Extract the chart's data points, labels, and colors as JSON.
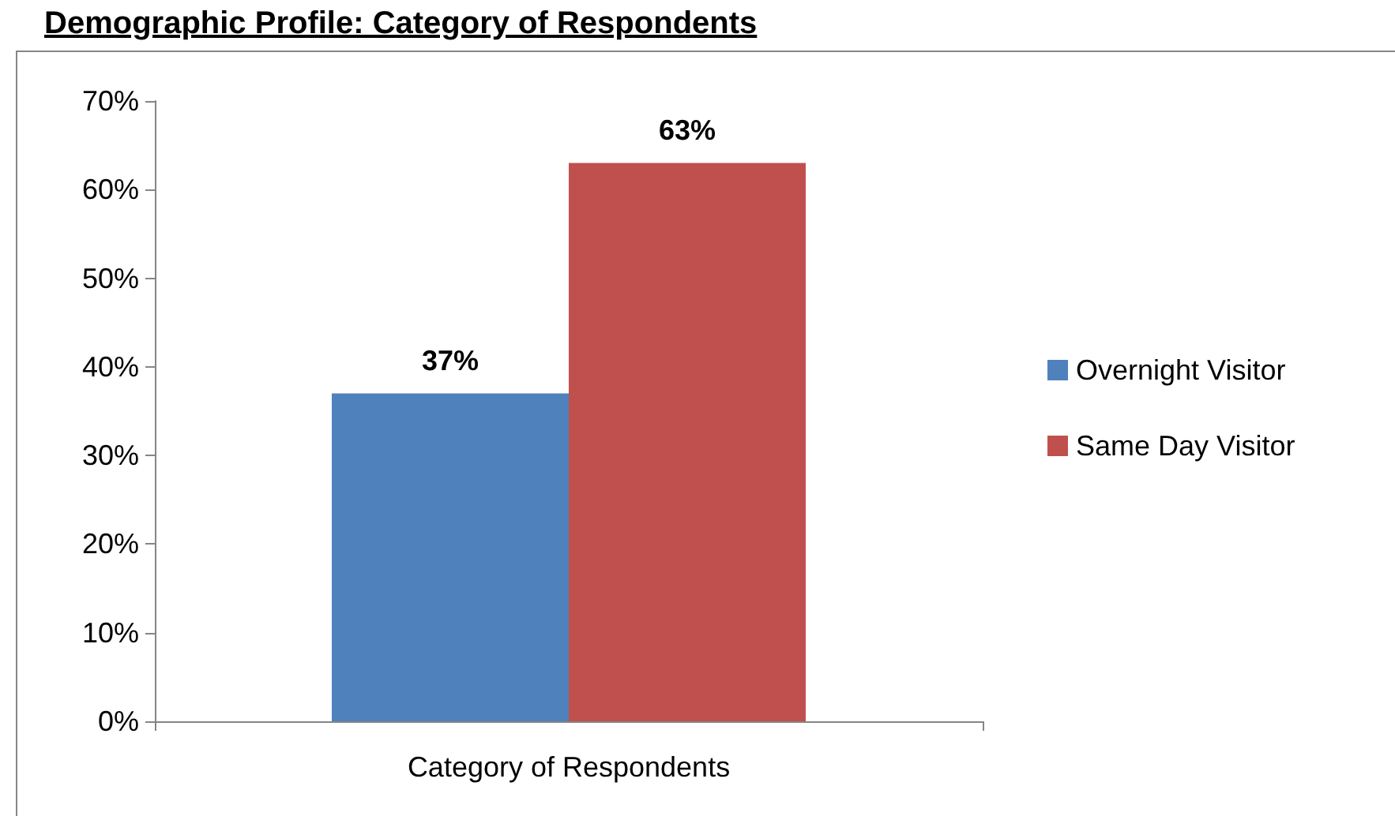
{
  "chart_data": {
    "type": "bar",
    "title": "Demographic Profile: Category of Respondents",
    "categories": [
      "Category of Respondents"
    ],
    "series": [
      {
        "name": "Overnight Visitor",
        "color": "#4f81bd",
        "values": [
          37
        ],
        "value_labels": [
          "37%"
        ]
      },
      {
        "name": "Same Day Visitor",
        "color": "#c0504d",
        "values": [
          63
        ],
        "value_labels": [
          "63%"
        ]
      }
    ],
    "ylim": [
      0,
      70
    ],
    "yticks": [
      {
        "value": 0,
        "label": "0%"
      },
      {
        "value": 10,
        "label": "10%"
      },
      {
        "value": 20,
        "label": "20%"
      },
      {
        "value": 30,
        "label": "30%"
      },
      {
        "value": 40,
        "label": "40%"
      },
      {
        "value": 50,
        "label": "50%"
      },
      {
        "value": 60,
        "label": "60%"
      },
      {
        "value": 70,
        "label": "70%"
      }
    ],
    "legend": "right"
  }
}
